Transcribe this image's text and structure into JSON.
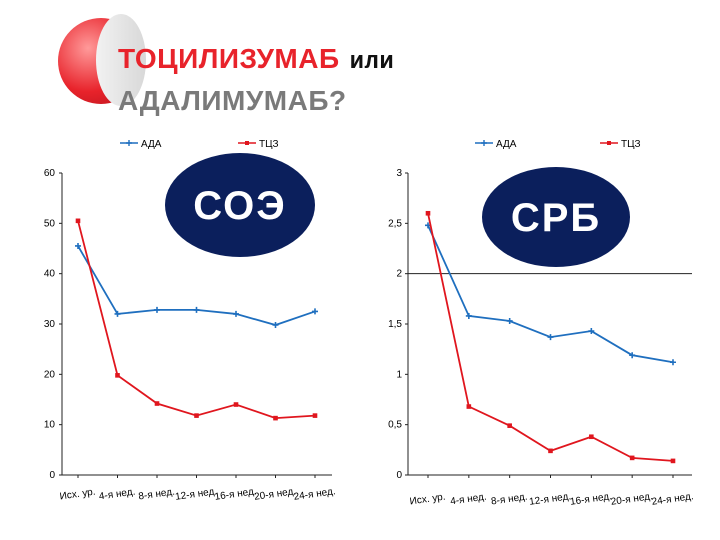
{
  "slide": {
    "title_part1": "ТОЦИЛИЗУМАБ",
    "title_part2": "или",
    "title_part3": "АДАЛИМУМАБ?"
  },
  "colors": {
    "ada": "#1f6fbf",
    "tcz": "#e0161e",
    "badge": "#0b1f5c",
    "badge_text": "#ffffff"
  },
  "chart_data": [
    {
      "type": "line",
      "badge": "СОЭ",
      "categories": [
        "Исх. ур.",
        "4-я нед.",
        "8-я нед.",
        "12-я нед.",
        "16-я нед.",
        "20-я нед.",
        "24-я нед."
      ],
      "yticks": [
        "0",
        "10",
        "20",
        "30",
        "40",
        "50",
        "60"
      ],
      "ylim": [
        0,
        60
      ],
      "legend_position": "top",
      "grid": false,
      "series": [
        {
          "name": "АДА",
          "values": [
            45.5,
            32,
            32.8,
            32.8,
            32,
            29.8,
            32.5
          ]
        },
        {
          "name": "ТЦЗ",
          "values": [
            50.5,
            19.8,
            14.2,
            11.8,
            14,
            11.3,
            11.8
          ]
        }
      ]
    },
    {
      "type": "line",
      "badge": "СРБ",
      "categories": [
        "Исх. ур.",
        "4-я нед.",
        "8-я нед.",
        "12-я нед.",
        "16-я нед.",
        "20-я нед.",
        "24-я нед."
      ],
      "yticks": [
        "0",
        "0,5",
        "1",
        "1,5",
        "2",
        "2,5",
        "3"
      ],
      "ylim": [
        0,
        3
      ],
      "legend_position": "top",
      "grid": false,
      "reference_line": 2,
      "series": [
        {
          "name": "АДА",
          "values": [
            2.48,
            1.58,
            1.53,
            1.37,
            1.43,
            1.19,
            1.12
          ]
        },
        {
          "name": "ТЦЗ",
          "values": [
            2.6,
            0.68,
            0.49,
            0.24,
            0.38,
            0.17,
            0.14
          ]
        }
      ]
    }
  ]
}
